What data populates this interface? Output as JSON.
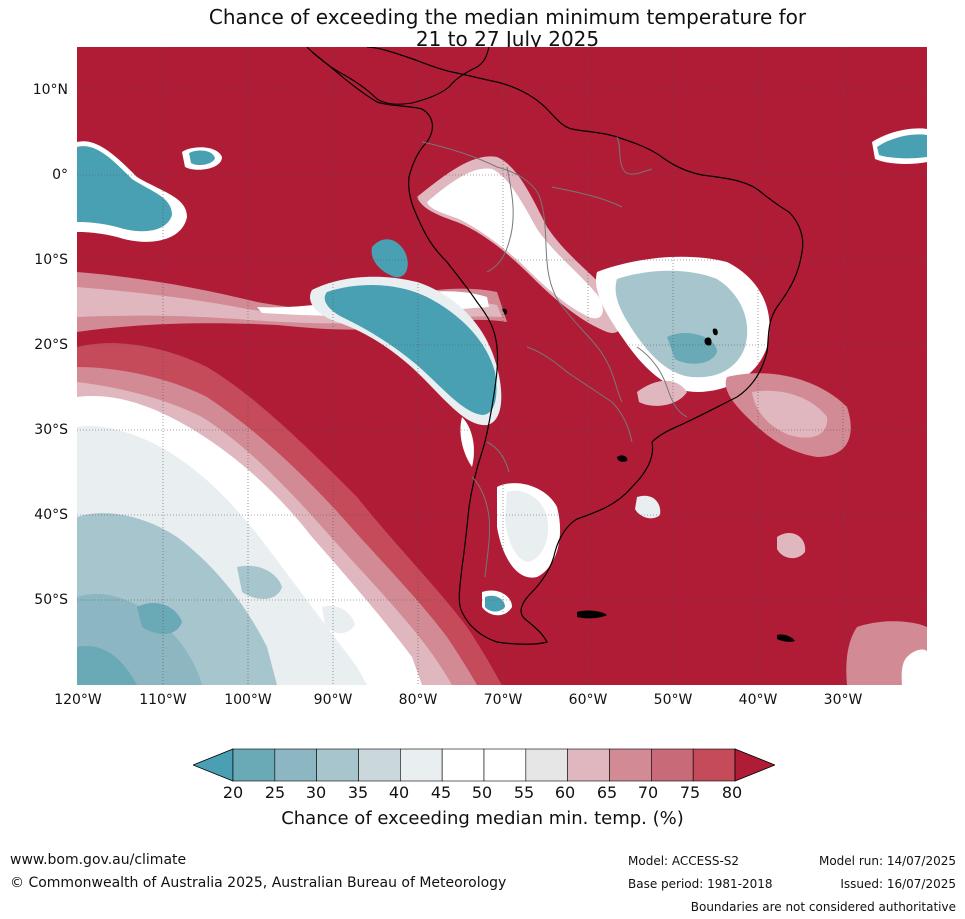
{
  "title": {
    "line1": "Chance of exceeding the median minimum temperature for",
    "line2": "21 to 27 July 2025"
  },
  "map": {
    "axes": {
      "lat_labels": [
        "10°N",
        "0°",
        "10°S",
        "20°S",
        "30°S",
        "40°S",
        "50°S"
      ],
      "lon_labels": [
        "120°W",
        "110°W",
        "100°W",
        "90°W",
        "80°W",
        "70°W",
        "60°W",
        "50°W",
        "40°W",
        "30°W"
      ]
    },
    "colors": {
      "very_high": "#b01c36",
      "high": "#c54a5a",
      "moderate_high": "#d28a95",
      "slight_high": "#e0b7be",
      "near_median": "#ffffff",
      "slight_low": "#e9eef1",
      "moderate_low": "#a7c5cc",
      "low": "#6aa9b6",
      "very_low": "#48a0b2",
      "coast": "#000000",
      "border": "#777777"
    }
  },
  "colorbar": {
    "ticks": [
      "20",
      "25",
      "30",
      "35",
      "40",
      "45",
      "50",
      "55",
      "60",
      "65",
      "70",
      "75",
      "80"
    ],
    "colors": [
      "#48a0b2",
      "#6aa9b6",
      "#8db6c3",
      "#a7c5cc",
      "#cbd8db",
      "#e9eef1",
      "#ffffff",
      "#ffffff",
      "#e6e6e6",
      "#e0b7be",
      "#d28a95",
      "#c86a77",
      "#c54a5a",
      "#b01c36"
    ],
    "label": "Chance of exceeding median min. temp. (%)"
  },
  "footer": {
    "website": "www.bom.gov.au/climate",
    "copyright": "© Commonwealth of Australia 2025, Australian Bureau of Meteorology",
    "model": "Model: ACCESS-S2",
    "base_period": "Base period: 1981-2018",
    "model_run": "Model run: 14/07/2025",
    "issued": "Issued: 16/07/2025",
    "disclaimer": "Boundaries are not considered authoritative"
  }
}
